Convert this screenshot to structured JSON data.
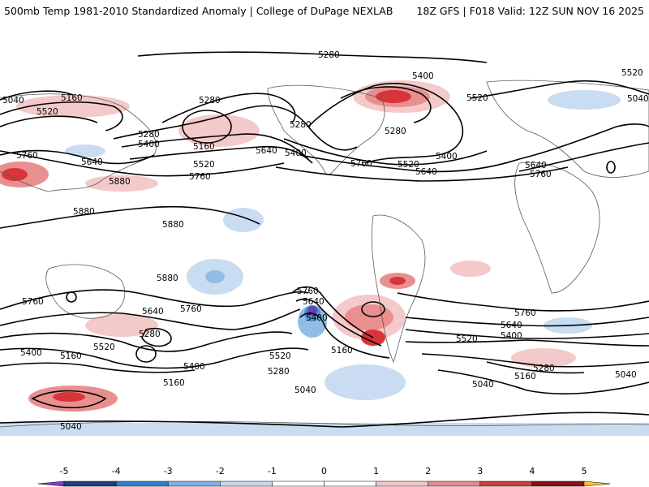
{
  "header": {
    "title_left": "500mb Temp 1981-2010 Standardized Anomaly | College of DuPage NEXLAB",
    "title_right": "18Z GFS | F018 Valid: 12Z SUN NOV 16 2025"
  },
  "colors": {
    "ocean": "#ffffff",
    "land_outline": "#5a5a5a",
    "contour": "#000000",
    "pos_light": "#f4c9c9",
    "pos_mid": "#e98f8f",
    "pos_strong": "#d8353a",
    "neg_light": "#c9dcf1",
    "neg_mid": "#8fbde6",
    "neg_strong": "#4d8fd4",
    "neg_extreme": "#6a3fb5"
  },
  "colorbar": {
    "ticks": [
      "-5",
      "-4",
      "-3",
      "-2",
      "-1",
      "0",
      "1",
      "2",
      "3",
      "4",
      "5"
    ],
    "segments": [
      {
        "from": -5.5,
        "to": -5,
        "color": "#7e3fbf"
      },
      {
        "from": -5,
        "to": -4,
        "color": "#1e3f7f"
      },
      {
        "from": -4,
        "to": -3,
        "color": "#2f7fd0"
      },
      {
        "from": -3,
        "to": -2,
        "color": "#7fb0e3"
      },
      {
        "from": -2,
        "to": -1,
        "color": "#c4d9f0"
      },
      {
        "from": -1,
        "to": 0,
        "color": "#ffffff"
      },
      {
        "from": 0,
        "to": 1,
        "color": "#ffffff"
      },
      {
        "from": 1,
        "to": 2,
        "color": "#f4c4c4"
      },
      {
        "from": 2,
        "to": 3,
        "color": "#e58a8a"
      },
      {
        "from": 3,
        "to": 4,
        "color": "#d23a3a"
      },
      {
        "from": 4,
        "to": 5,
        "color": "#8b0f14"
      },
      {
        "from": 5,
        "to": 5.5,
        "color": "#f7c23a"
      }
    ]
  },
  "contour_labels": [
    {
      "name": "label-5280-top",
      "text": "5280"
    },
    {
      "name": "label-5040-west",
      "text": "5040"
    },
    {
      "name": "label-5160-atl",
      "text": "5160"
    },
    {
      "name": "label-5520-atl",
      "text": "5520"
    },
    {
      "name": "label-5760-west",
      "text": "5760"
    },
    {
      "name": "label-5640-atl",
      "text": "5640"
    },
    {
      "name": "label-5880-atl",
      "text": "5880"
    },
    {
      "name": "label-5280-euro",
      "text": "5280"
    },
    {
      "name": "label-5280-euro2",
      "text": "5280"
    },
    {
      "name": "label-5400-euro",
      "text": "5400"
    },
    {
      "name": "label-5160-euro",
      "text": "5160"
    },
    {
      "name": "label-5520-euro",
      "text": "5520"
    },
    {
      "name": "label-5640-euro",
      "text": "5640"
    },
    {
      "name": "label-5760-euro",
      "text": "5760"
    },
    {
      "name": "label-5880-africa",
      "text": "5880"
    },
    {
      "name": "label-5880-arabia",
      "text": "5880"
    },
    {
      "name": "label-5880-india",
      "text": "5880"
    },
    {
      "name": "label-5280-asia",
      "text": "5280"
    },
    {
      "name": "label-5400-asia",
      "text": "5400"
    },
    {
      "name": "label-5400-canada",
      "text": "5400"
    },
    {
      "name": "label-5280-canada",
      "text": "5280"
    },
    {
      "name": "label-5520-canada",
      "text": "5520"
    },
    {
      "name": "label-5520-us",
      "text": "5520"
    },
    {
      "name": "label-5400-us",
      "text": "5400"
    },
    {
      "name": "label-5640-us",
      "text": "5640"
    },
    {
      "name": "label-5760-us",
      "text": "5760"
    },
    {
      "name": "label-5520-east",
      "text": "5520"
    },
    {
      "name": "label-5640-east",
      "text": "5640"
    },
    {
      "name": "label-5760-east",
      "text": "5760"
    },
    {
      "name": "label-5040-east",
      "text": "5040"
    },
    {
      "name": "label-5760-sw",
      "text": "5760"
    },
    {
      "name": "label-5640-sw",
      "text": "5640"
    },
    {
      "name": "label-5760-sind",
      "text": "5760"
    },
    {
      "name": "label-5280-sind",
      "text": "5280"
    },
    {
      "name": "label-5520-sind",
      "text": "5520"
    },
    {
      "name": "label-5400-sw",
      "text": "5400"
    },
    {
      "name": "label-5160-sw",
      "text": "5160"
    },
    {
      "name": "label-5400-saus",
      "text": "5400"
    },
    {
      "name": "label-5520-saus",
      "text": "5520"
    },
    {
      "name": "label-5280-saus",
      "text": "5280"
    },
    {
      "name": "label-5160-spac",
      "text": "5160"
    },
    {
      "name": "label-5040-spac",
      "text": "5040"
    },
    {
      "name": "label-5040-ant",
      "text": "5040"
    },
    {
      "name": "label-5760-nz",
      "text": "5760"
    },
    {
      "name": "label-5640-nz",
      "text": "5640"
    },
    {
      "name": "label-5400-nz",
      "text": "5400"
    },
    {
      "name": "label-5160-spac2",
      "text": "5160"
    },
    {
      "name": "label-5760-satl",
      "text": "5760"
    },
    {
      "name": "label-5640-satl",
      "text": "5640"
    },
    {
      "name": "label-5400-satl",
      "text": "5400"
    },
    {
      "name": "label-5520-satl",
      "text": "5520"
    },
    {
      "name": "label-5280-satl",
      "text": "5280"
    },
    {
      "name": "label-5160-satl",
      "text": "5160"
    },
    {
      "name": "label-5040-satl",
      "text": "5040"
    },
    {
      "name": "label-5040-ant2",
      "text": "5040"
    }
  ]
}
